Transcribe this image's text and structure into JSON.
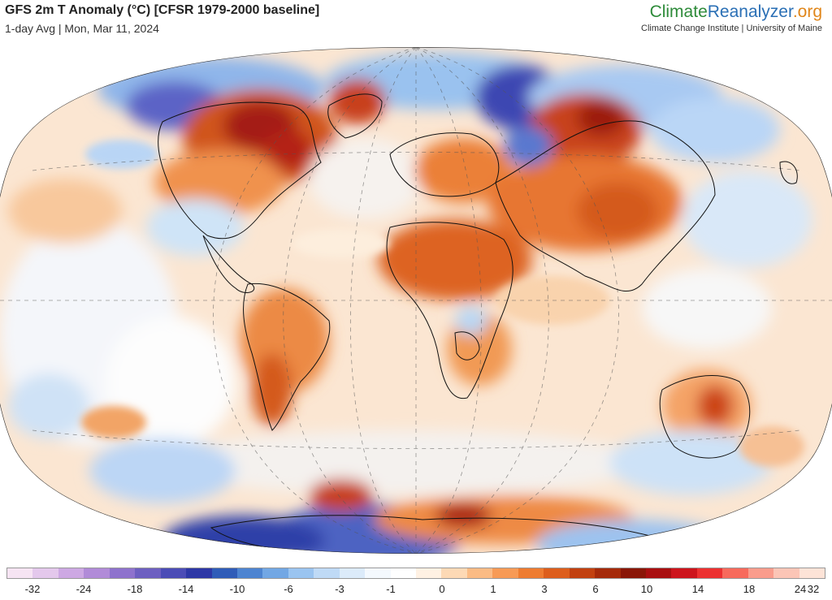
{
  "header": {
    "title": "GFS 2m T Anomaly (°C) [CFSR 1979-2000 baseline]",
    "subtitle": "1-day Avg | Mon, Mar 11, 2024"
  },
  "brand": {
    "logo_part1": "Climate",
    "logo_part2": "Reanalyzer",
    "logo_part3": ".org",
    "tagline": "Climate Change Institute | University of Maine",
    "colors": {
      "part1": "#2e8b3a",
      "part2": "#2a6fb5",
      "part3": "#e0861a"
    }
  },
  "map": {
    "projection": "Winkel Tripel (global)",
    "graticule": "dashed",
    "anomaly_colors": {
      "strong_warm": "#b22218",
      "warm": "#e86a24",
      "mild_warm": "#f7b27a",
      "slight_warm": "#fbe0c6",
      "neutral": "#ffffff",
      "slight_cool": "#cfe4f7",
      "cool": "#8fc0ec",
      "cold": "#4a7fd0",
      "very_cold": "#3039a8"
    }
  },
  "colorbar": {
    "colors": [
      "#f6e4f3",
      "#e4c8ec",
      "#cda8e3",
      "#b18bd8",
      "#8e72cd",
      "#6d5fc1",
      "#4b4cb6",
      "#2d37a6",
      "#2f5cb8",
      "#4d84d1",
      "#72a7e4",
      "#9ac4f0",
      "#bfdaf6",
      "#dcebfa",
      "#f4f9fe",
      "#ffffff",
      "#fff1e3",
      "#fdd9b5",
      "#fbbb84",
      "#f79a55",
      "#ee7c30",
      "#dd5e1c",
      "#c24110",
      "#a52a0a",
      "#8a1607",
      "#a90f10",
      "#cd141c",
      "#ec3030",
      "#f76a5c",
      "#fa9c8c",
      "#fcc5b6",
      "#fde3d7"
    ],
    "tick_labels": [
      "-32",
      "-24",
      "-18",
      "-14",
      "-10",
      "-6",
      "-3",
      "-1",
      "0",
      "1",
      "3",
      "6",
      "10",
      "14",
      "18",
      "24",
      "32"
    ]
  }
}
